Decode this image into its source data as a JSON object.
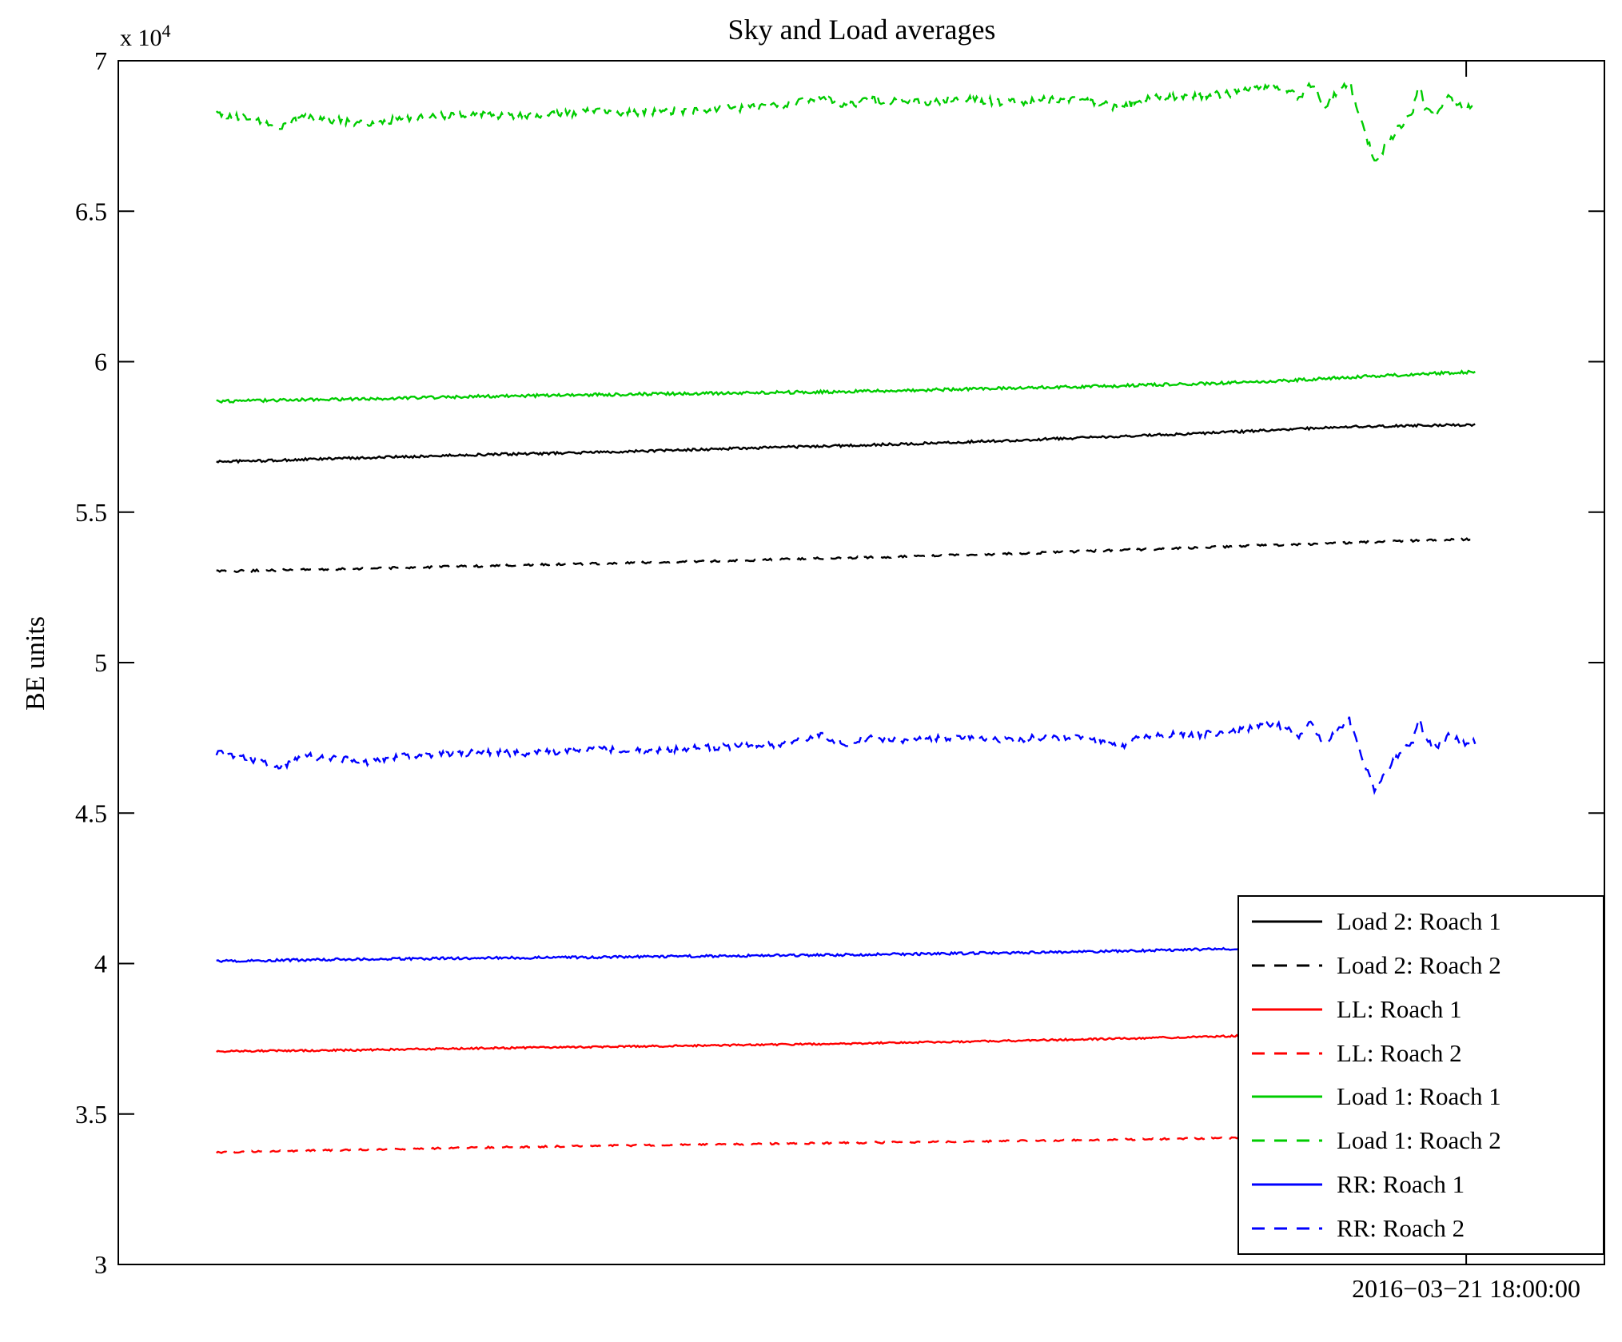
{
  "figure": {
    "title": "Sky and Load averages",
    "ylabel": "BE units",
    "y_exponent_base": "x 10",
    "y_exponent_power": "4",
    "x_tick_label": "2016−03−21 18:00:00"
  },
  "chart_data": {
    "type": "line",
    "title": "Sky and Load averages",
    "xlabel": "",
    "ylabel": "BE units",
    "grid": false,
    "legend_position": "bottom-right",
    "axis": {
      "ylim": [
        30000,
        70000
      ],
      "y_scale_exponent": 4,
      "ylim_scaled": [
        3,
        7
      ],
      "yticks": [
        3,
        3.5,
        4,
        4.5,
        5,
        5.5,
        6,
        6.5,
        7
      ],
      "ytick_labels": [
        "3",
        "3.5",
        "4",
        "4.5",
        "5",
        "5.5",
        "6",
        "6.5",
        "7"
      ],
      "x_tick": {
        "frac": 0.907,
        "label": "2016−03−21 18:00:00"
      },
      "data_x_range": [
        0.066,
        0.913
      ]
    },
    "values_unit": "1e4 BE units",
    "series": [
      {
        "name": "Load 2: Roach 1",
        "color": "#000000",
        "dash": "solid",
        "noise": 0.004,
        "points": [
          [
            0,
            5.668
          ],
          [
            0.05,
            5.672
          ],
          [
            0.1,
            5.679
          ],
          [
            0.15,
            5.684
          ],
          [
            0.2,
            5.69
          ],
          [
            0.25,
            5.694
          ],
          [
            0.3,
            5.699
          ],
          [
            0.35,
            5.704
          ],
          [
            0.4,
            5.71
          ],
          [
            0.45,
            5.716
          ],
          [
            0.5,
            5.721
          ],
          [
            0.55,
            5.727
          ],
          [
            0.6,
            5.734
          ],
          [
            0.65,
            5.741
          ],
          [
            0.7,
            5.749
          ],
          [
            0.75,
            5.757
          ],
          [
            0.8,
            5.765
          ],
          [
            0.85,
            5.775
          ],
          [
            0.9,
            5.784
          ],
          [
            0.95,
            5.788
          ],
          [
            1,
            5.79
          ]
        ]
      },
      {
        "name": "Load 2: Roach 2",
        "color": "#000000",
        "dash": "dashed",
        "noise": 0.0035,
        "points": [
          [
            0,
            5.303
          ],
          [
            0.1,
            5.311
          ],
          [
            0.2,
            5.32
          ],
          [
            0.3,
            5.329
          ],
          [
            0.4,
            5.338
          ],
          [
            0.5,
            5.348
          ],
          [
            0.6,
            5.358
          ],
          [
            0.7,
            5.371
          ],
          [
            0.8,
            5.385
          ],
          [
            0.9,
            5.398
          ],
          [
            0.95,
            5.405
          ],
          [
            1,
            5.41
          ]
        ]
      },
      {
        "name": "LL: Roach 1",
        "color": "#ff0000",
        "dash": "solid",
        "noise": 0.003,
        "points": [
          [
            0,
            3.708
          ],
          [
            0.1,
            3.712
          ],
          [
            0.2,
            3.718
          ],
          [
            0.3,
            3.723
          ],
          [
            0.4,
            3.728
          ],
          [
            0.5,
            3.734
          ],
          [
            0.6,
            3.741
          ],
          [
            0.7,
            3.749
          ],
          [
            0.8,
            3.758
          ],
          [
            0.9,
            3.769
          ],
          [
            1,
            3.78
          ]
        ]
      },
      {
        "name": "LL: Roach 2",
        "color": "#ff0000",
        "dash": "dashed",
        "noise": 0.0028,
        "points": [
          [
            0,
            3.373
          ],
          [
            0.1,
            3.38
          ],
          [
            0.2,
            3.388
          ],
          [
            0.3,
            3.394
          ],
          [
            0.4,
            3.399
          ],
          [
            0.5,
            3.404
          ],
          [
            0.6,
            3.409
          ],
          [
            0.7,
            3.414
          ],
          [
            0.8,
            3.42
          ],
          [
            0.9,
            3.428
          ],
          [
            1,
            3.438
          ]
        ]
      },
      {
        "name": "Load 1: Roach 1",
        "color": "#00cc00",
        "dash": "solid",
        "noise": 0.005,
        "points": [
          [
            0,
            5.868
          ],
          [
            0.1,
            5.875
          ],
          [
            0.2,
            5.884
          ],
          [
            0.3,
            5.89
          ],
          [
            0.4,
            5.895
          ],
          [
            0.5,
            5.901
          ],
          [
            0.6,
            5.909
          ],
          [
            0.7,
            5.918
          ],
          [
            0.8,
            5.929
          ],
          [
            0.85,
            5.937
          ],
          [
            0.9,
            5.948
          ],
          [
            0.95,
            5.958
          ],
          [
            1,
            5.966
          ]
        ]
      },
      {
        "name": "Load 1: Roach 2",
        "color": "#00cc00",
        "dash": "dashed",
        "noise": 0.013,
        "points": [
          [
            0,
            6.82
          ],
          [
            0.02,
            6.81
          ],
          [
            0.05,
            6.78
          ],
          [
            0.07,
            6.81
          ],
          [
            0.1,
            6.8
          ],
          [
            0.12,
            6.79
          ],
          [
            0.15,
            6.81
          ],
          [
            0.2,
            6.82
          ],
          [
            0.25,
            6.82
          ],
          [
            0.3,
            6.83
          ],
          [
            0.35,
            6.83
          ],
          [
            0.4,
            6.84
          ],
          [
            0.45,
            6.85
          ],
          [
            0.48,
            6.88
          ],
          [
            0.5,
            6.85
          ],
          [
            0.52,
            6.87
          ],
          [
            0.55,
            6.86
          ],
          [
            0.58,
            6.87
          ],
          [
            0.6,
            6.87
          ],
          [
            0.63,
            6.86
          ],
          [
            0.65,
            6.87
          ],
          [
            0.68,
            6.87
          ],
          [
            0.7,
            6.86
          ],
          [
            0.72,
            6.84
          ],
          [
            0.73,
            6.87
          ],
          [
            0.75,
            6.88
          ],
          [
            0.78,
            6.88
          ],
          [
            0.8,
            6.89
          ],
          [
            0.82,
            6.9
          ],
          [
            0.84,
            6.92
          ],
          [
            0.86,
            6.88
          ],
          [
            0.87,
            6.92
          ],
          [
            0.88,
            6.85
          ],
          [
            0.9,
            6.93
          ],
          [
            0.91,
            6.8
          ],
          [
            0.92,
            6.66
          ],
          [
            0.93,
            6.72
          ],
          [
            0.94,
            6.78
          ],
          [
            0.95,
            6.82
          ],
          [
            0.955,
            6.93
          ],
          [
            0.96,
            6.85
          ],
          [
            0.97,
            6.83
          ],
          [
            0.98,
            6.88
          ],
          [
            0.99,
            6.84
          ],
          [
            1,
            6.86
          ]
        ]
      },
      {
        "name": "RR: Roach 1",
        "color": "#0000ff",
        "dash": "solid",
        "noise": 0.004,
        "points": [
          [
            0,
            4.008
          ],
          [
            0.1,
            4.014
          ],
          [
            0.2,
            4.018
          ],
          [
            0.3,
            4.021
          ],
          [
            0.4,
            4.025
          ],
          [
            0.5,
            4.029
          ],
          [
            0.6,
            4.034
          ],
          [
            0.7,
            4.04
          ],
          [
            0.8,
            4.048
          ],
          [
            0.9,
            4.058
          ],
          [
            1,
            4.068
          ]
        ]
      },
      {
        "name": "RR: Roach 2",
        "color": "#0000ff",
        "dash": "dashed",
        "noise": 0.011,
        "points": [
          [
            0,
            4.7
          ],
          [
            0.02,
            4.69
          ],
          [
            0.05,
            4.65
          ],
          [
            0.07,
            4.69
          ],
          [
            0.1,
            4.68
          ],
          [
            0.12,
            4.67
          ],
          [
            0.15,
            4.69
          ],
          [
            0.2,
            4.7
          ],
          [
            0.25,
            4.7
          ],
          [
            0.3,
            4.71
          ],
          [
            0.35,
            4.71
          ],
          [
            0.4,
            4.72
          ],
          [
            0.45,
            4.73
          ],
          [
            0.48,
            4.76
          ],
          [
            0.5,
            4.73
          ],
          [
            0.52,
            4.75
          ],
          [
            0.55,
            4.74
          ],
          [
            0.58,
            4.75
          ],
          [
            0.6,
            4.75
          ],
          [
            0.63,
            4.74
          ],
          [
            0.65,
            4.75
          ],
          [
            0.68,
            4.75
          ],
          [
            0.7,
            4.74
          ],
          [
            0.72,
            4.72
          ],
          [
            0.73,
            4.75
          ],
          [
            0.75,
            4.76
          ],
          [
            0.78,
            4.76
          ],
          [
            0.8,
            4.77
          ],
          [
            0.82,
            4.78
          ],
          [
            0.84,
            4.8
          ],
          [
            0.86,
            4.76
          ],
          [
            0.87,
            4.8
          ],
          [
            0.88,
            4.73
          ],
          [
            0.9,
            4.81
          ],
          [
            0.91,
            4.68
          ],
          [
            0.92,
            4.58
          ],
          [
            0.93,
            4.64
          ],
          [
            0.94,
            4.7
          ],
          [
            0.95,
            4.73
          ],
          [
            0.955,
            4.82
          ],
          [
            0.96,
            4.74
          ],
          [
            0.97,
            4.72
          ],
          [
            0.98,
            4.76
          ],
          [
            0.99,
            4.73
          ],
          [
            1,
            4.74
          ]
        ]
      }
    ]
  }
}
